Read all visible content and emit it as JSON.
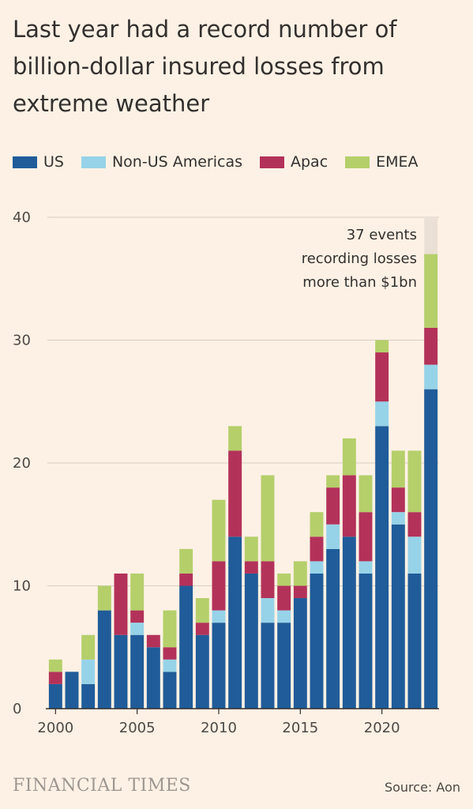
{
  "title": "Last year had a record number of billion-dollar insured losses from extreme weather",
  "legend": [
    {
      "label": "US",
      "color": "#1f5c99"
    },
    {
      "label": "Non-US Americas",
      "color": "#96d3e8"
    },
    {
      "label": "Apac",
      "color": "#b3325a"
    },
    {
      "label": "EMEA",
      "color": "#b5cf6b"
    }
  ],
  "annotation": [
    "37 events",
    "recording losses",
    "more than $1bn"
  ],
  "footer": {
    "brand": "FINANCIAL TIMES",
    "source": "Source: Aon"
  },
  "chart_data": {
    "type": "bar",
    "stacked": true,
    "categories": [
      2000,
      2001,
      2002,
      2003,
      2004,
      2005,
      2006,
      2007,
      2008,
      2009,
      2010,
      2011,
      2012,
      2013,
      2014,
      2015,
      2016,
      2017,
      2018,
      2019,
      2020,
      2021,
      2022,
      2023
    ],
    "series": [
      {
        "name": "US",
        "color": "#1f5c99",
        "values": [
          2,
          3,
          2,
          8,
          6,
          6,
          5,
          3,
          10,
          6,
          7,
          14,
          11,
          7,
          7,
          9,
          11,
          13,
          14,
          11,
          23,
          15,
          11,
          26
        ]
      },
      {
        "name": "Non-US Americas",
        "color": "#96d3e8",
        "values": [
          0,
          0,
          2,
          0,
          0,
          1,
          0,
          1,
          0,
          0,
          1,
          0,
          0,
          2,
          1,
          0,
          1,
          2,
          0,
          1,
          2,
          1,
          3,
          2
        ]
      },
      {
        "name": "Apac",
        "color": "#b3325a",
        "values": [
          1,
          0,
          0,
          0,
          5,
          1,
          1,
          1,
          1,
          1,
          4,
          7,
          1,
          3,
          2,
          1,
          2,
          3,
          5,
          4,
          4,
          2,
          2,
          3
        ]
      },
      {
        "name": "EMEA",
        "color": "#b5cf6b",
        "values": [
          1,
          0,
          2,
          2,
          0,
          3,
          0,
          3,
          2,
          2,
          5,
          2,
          2,
          7,
          1,
          2,
          2,
          1,
          3,
          3,
          1,
          3,
          5,
          6
        ]
      }
    ],
    "xticks": [
      "2000",
      "2005",
      "2010",
      "2015",
      "2020"
    ],
    "yticks": [
      "0",
      "10",
      "20",
      "30",
      "40"
    ],
    "ylim": [
      0,
      40
    ],
    "highlight_category": 2023,
    "grid": true
  }
}
